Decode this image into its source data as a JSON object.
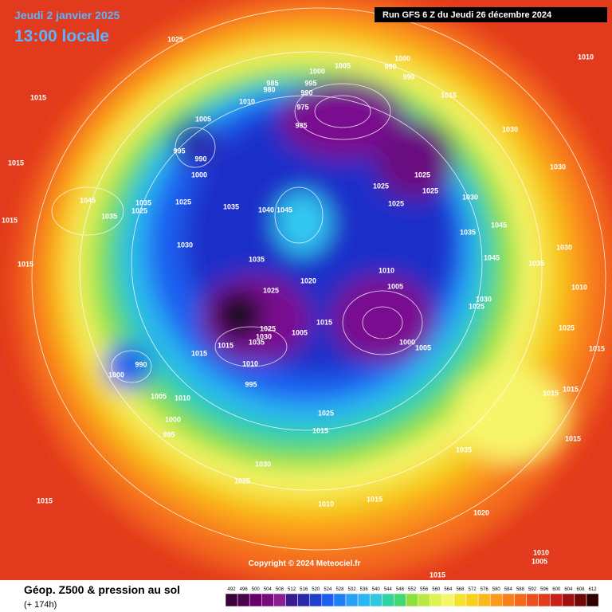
{
  "header": {
    "date": "Jeudi 2 janvier 2025",
    "time": "13:00 locale",
    "run": "Run GFS 6 Z du Jeudi 26 décembre 2024"
  },
  "copyright": "Copyright © 2024 Meteociel.fr",
  "legend": {
    "title": "Géop. Z500 & pression au sol",
    "subtitle": "(+ 174h)",
    "scale": [
      492,
      496,
      500,
      504,
      508,
      512,
      516,
      520,
      524,
      528,
      532,
      536,
      540,
      544,
      548,
      552,
      556,
      560,
      564,
      568,
      572,
      576,
      580,
      584,
      588,
      592,
      596,
      600,
      604,
      608,
      612
    ]
  },
  "isobar_labels": [
    1025,
    1015,
    1010,
    1005,
    995,
    990,
    1000,
    985,
    980,
    995,
    990,
    1000,
    1005,
    975,
    985,
    1000,
    990,
    990,
    1015,
    1010,
    1030,
    1030,
    1025,
    1025,
    1025,
    1025,
    1030,
    1035,
    1045,
    1045,
    1035,
    1030,
    1010,
    1030,
    1025,
    1025,
    1015,
    1015,
    1015,
    1015,
    1045,
    1035,
    1035,
    1025,
    1025,
    1035,
    1040,
    1045,
    1030,
    1035,
    1020,
    1025,
    1010,
    1005,
    1015,
    1005,
    1025,
    1030,
    1035,
    1015,
    1015,
    1010,
    995,
    990,
    1000,
    1005,
    1010,
    1000,
    995,
    1025,
    1015,
    1035,
    1015,
    1015,
    1015,
    1030,
    1025,
    1015,
    1010,
    1015,
    1020,
    1010,
    1005,
    1015,
    1000,
    1005
  ]
}
